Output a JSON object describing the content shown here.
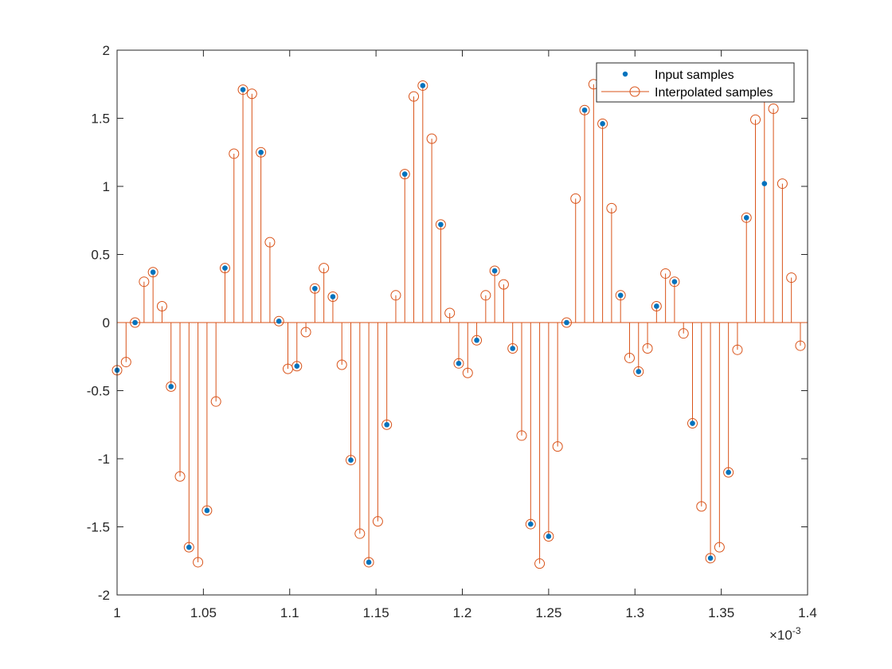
{
  "chart_data": {
    "type": "scatter",
    "x_scale_label": "×10",
    "x_scale_exponent": "-3",
    "xlim": [
      1,
      1.4
    ],
    "ylim": [
      -2,
      2
    ],
    "x_ticks": [
      "1",
      "1.05",
      "1.1",
      "1.15",
      "1.2",
      "1.25",
      "1.3",
      "1.35",
      "1.4"
    ],
    "y_ticks": [
      "-2",
      "-1.5",
      "-1",
      "-0.5",
      "0",
      "0.5",
      "1",
      "1.5",
      "2"
    ],
    "x_tick_values": [
      1,
      1.05,
      1.1,
      1.15,
      1.2,
      1.25,
      1.3,
      1.35,
      1.4
    ],
    "y_tick_values": [
      -2,
      -1.5,
      -1,
      -0.5,
      0,
      0.5,
      1,
      1.5,
      2
    ],
    "legend_position": "top-right",
    "grid": false,
    "colors": {
      "input": "#0072BD",
      "interpolated": "#D95319"
    },
    "series": [
      {
        "name": "Input samples",
        "style": "dots",
        "x_start": 1.0,
        "x_step": 0.0104167,
        "values": [
          -0.35,
          0.0,
          0.37,
          -0.47,
          -1.65,
          -1.38,
          0.4,
          1.71,
          1.25,
          0.01,
          -0.32,
          0.25,
          0.19,
          -1.01,
          -1.76,
          -0.75,
          1.09,
          1.74,
          0.72,
          -0.3,
          -0.13,
          0.38,
          -0.19,
          -1.48,
          -1.57,
          0.0,
          1.56,
          1.46,
          0.2,
          -0.36,
          0.12,
          0.3,
          -0.74,
          -1.73,
          -1.1,
          0.77,
          1.02
        ]
      },
      {
        "name": "Interpolated samples",
        "style": "stem",
        "x_start": 1.0,
        "x_step": 0.0052083,
        "values": [
          -0.35,
          -0.29,
          0.0,
          0.3,
          0.37,
          0.12,
          -0.47,
          -1.13,
          -1.65,
          -1.76,
          -1.38,
          -0.58,
          0.4,
          1.24,
          1.71,
          1.68,
          1.25,
          0.59,
          0.01,
          -0.34,
          -0.32,
          -0.07,
          0.25,
          0.4,
          0.19,
          -0.31,
          -1.01,
          -1.55,
          -1.76,
          -1.46,
          -0.75,
          0.2,
          1.09,
          1.66,
          1.74,
          1.35,
          0.72,
          0.07,
          -0.3,
          -0.37,
          -0.13,
          0.2,
          0.38,
          0.28,
          -0.19,
          -0.83,
          -1.48,
          -1.77,
          -1.57,
          -0.91,
          0.0,
          0.91,
          1.56,
          1.75,
          1.46,
          0.84,
          0.2,
          -0.26,
          -0.36,
          -0.19,
          0.12,
          0.36,
          0.3,
          -0.08,
          -0.74,
          -1.35,
          -1.73,
          -1.65,
          -1.1,
          -0.2,
          0.77,
          1.49,
          1.76,
          1.57,
          1.02,
          0.33,
          -0.17
        ]
      }
    ]
  }
}
